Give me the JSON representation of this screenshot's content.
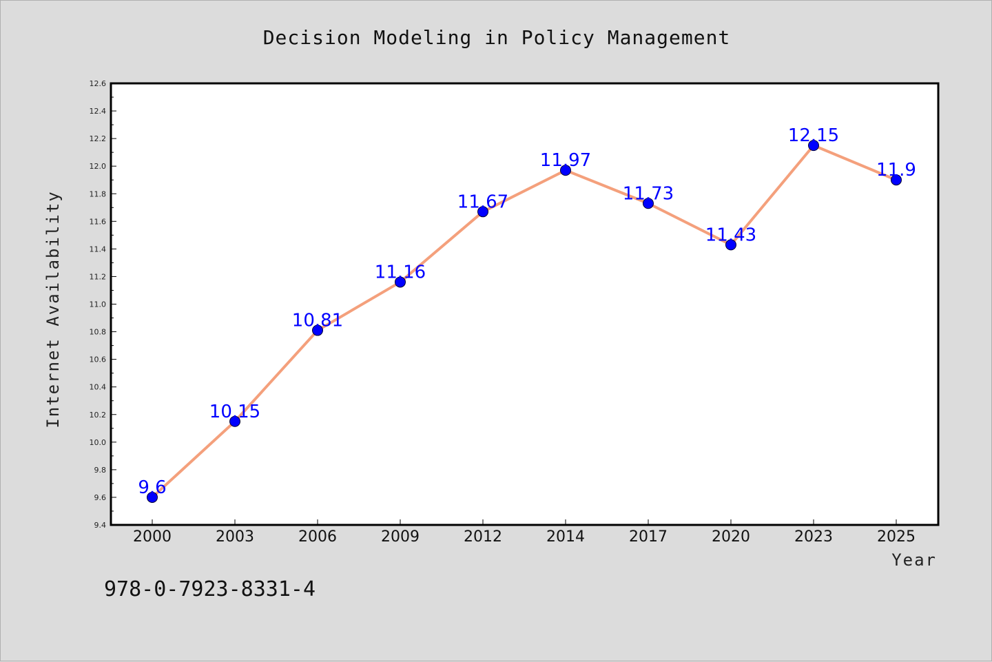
{
  "chart_data": {
    "type": "line",
    "title": "Decision Modeling in Policy Management",
    "xlabel": "Year",
    "ylabel": "Internet Availability",
    "categories": [
      "2000",
      "2003",
      "2006",
      "2009",
      "2012",
      "2014",
      "2017",
      "2020",
      "2023",
      "2025"
    ],
    "values": [
      9.6,
      10.15,
      10.81,
      11.16,
      11.67,
      11.97,
      11.73,
      11.43,
      12.15,
      11.9
    ],
    "data_labels": [
      "9.6",
      "10.15",
      "10.81",
      "11.16",
      "11.67",
      "11.97",
      "11.73",
      "11.43",
      "12.15",
      "11.9"
    ],
    "ylim": [
      9.4,
      12.6
    ],
    "yticks": [
      "9.4",
      "9.6",
      "9.8",
      "10.0",
      "10.2",
      "10.4",
      "10.6",
      "10.8",
      "11.0",
      "11.2",
      "11.4",
      "11.6",
      "11.8",
      "12.0",
      "12.2",
      "12.4",
      "12.6"
    ],
    "grid": false,
    "line_color": "#f4a07c",
    "marker_color": "#0000ff",
    "label_color": "#0000ff"
  },
  "annotation": {
    "isbn": "978-0-7923-8331-4"
  }
}
